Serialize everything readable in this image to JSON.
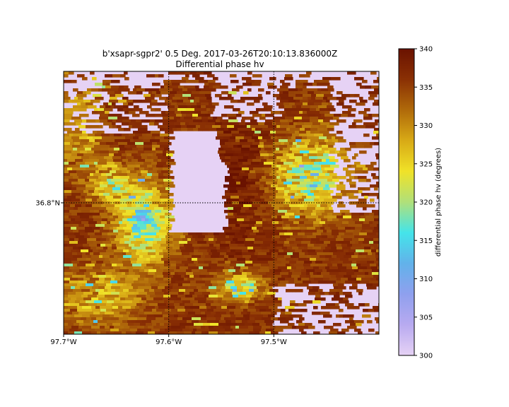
{
  "chart_data": {
    "type": "heatmap",
    "title": "b'xsapr-sgpr2' 0.5 Deg. 2017-03-26T20:10:13.836000Z",
    "subtitle": "Differential phase hv",
    "x_ticks": [
      {
        "label": "97.7°W",
        "lon": -97.7
      },
      {
        "label": "97.6°W",
        "lon": -97.6
      },
      {
        "label": "97.5°W",
        "lon": -97.5
      }
    ],
    "y_ticks": [
      {
        "label": "36.8°N",
        "lat": 36.8
      }
    ],
    "xlim": [
      -97.7,
      -97.4
    ],
    "ylim": [
      36.7,
      36.9
    ],
    "grid": "dotted",
    "colorbar": {
      "label": "differential phase hv (degrees)",
      "vmin": 300,
      "vmax": 340,
      "ticks": [
        300,
        305,
        310,
        315,
        320,
        325,
        330,
        335,
        340
      ],
      "colors": [
        "#e6d2f5",
        "#b8aaf0",
        "#8fa0ee",
        "#62b2ea",
        "#44e4ea",
        "#b0e07a",
        "#f0e228",
        "#d8aa16",
        "#b06a0a",
        "#8a3004",
        "#6a1200"
      ]
    }
  }
}
